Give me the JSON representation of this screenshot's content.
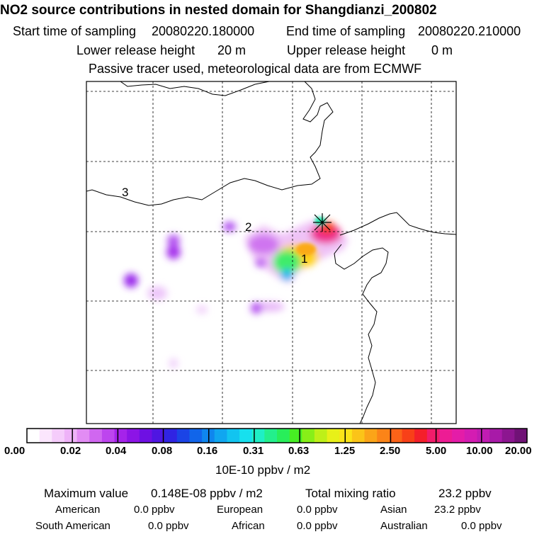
{
  "title": "NO2 source contributions in nested domain for Shangdianzi_200802",
  "header": {
    "start_label": "Start time of sampling",
    "start_value": "20080220.180000",
    "end_label": "End time of sampling",
    "end_value": "20080220.210000",
    "lower_label": "Lower release height",
    "lower_value": "20 m",
    "upper_label": "Upper release height",
    "upper_value": "0 m",
    "note": "Passive tracer used, meteorological data are from ECMWF"
  },
  "map": {
    "region_labels": [
      "1",
      "2",
      "3"
    ]
  },
  "colorbar": {
    "tick_labels": [
      "0.00",
      "0.02",
      "0.04",
      "0.08",
      "0.16",
      "0.31",
      "0.63",
      "1.25",
      "2.50",
      "5.00",
      "10.00",
      "20.00"
    ],
    "colors": [
      "#ffffff",
      "#fbe6fd",
      "#f5ccfb",
      "#eeb2f8",
      "#e28cf4",
      "#d067f0",
      "#bd45ee",
      "#a523ea",
      "#8c14e6",
      "#6e10e3",
      "#4f16e2",
      "#3024e3",
      "#1b44e6",
      "#1165ea",
      "#0f86ee",
      "#10a6f0",
      "#12c4f0",
      "#17e0ee",
      "#1fefc5",
      "#23ef8c",
      "#28ee5a",
      "#47ee23",
      "#87ef18",
      "#bef018",
      "#e8f018",
      "#fbe418",
      "#fbc418",
      "#fba418",
      "#fb8418",
      "#fb6318",
      "#f84018",
      "#f41f2a",
      "#f21c6a",
      "#ed1c94",
      "#e41ca8",
      "#d41cb2",
      "#c01cb2",
      "#a81aa8",
      "#8c1690",
      "#701276"
    ],
    "unit": "10E-10 ppbv / m2"
  },
  "footer": {
    "max_label": "Maximum value",
    "max_value": "0.148E-08 ppbv / m2",
    "total_label": "Total mixing ratio",
    "total_value": "23.2 ppbv",
    "regions": [
      {
        "name": "American",
        "value": "0.0 ppbv"
      },
      {
        "name": "European",
        "value": "0.0 ppbv"
      },
      {
        "name": "Asian",
        "value": "23.2 ppbv"
      },
      {
        "name": "South American",
        "value": "0.0 ppbv"
      },
      {
        "name": "African",
        "value": "0.0 ppbv"
      },
      {
        "name": "Australian",
        "value": "0.0 ppbv"
      }
    ]
  }
}
